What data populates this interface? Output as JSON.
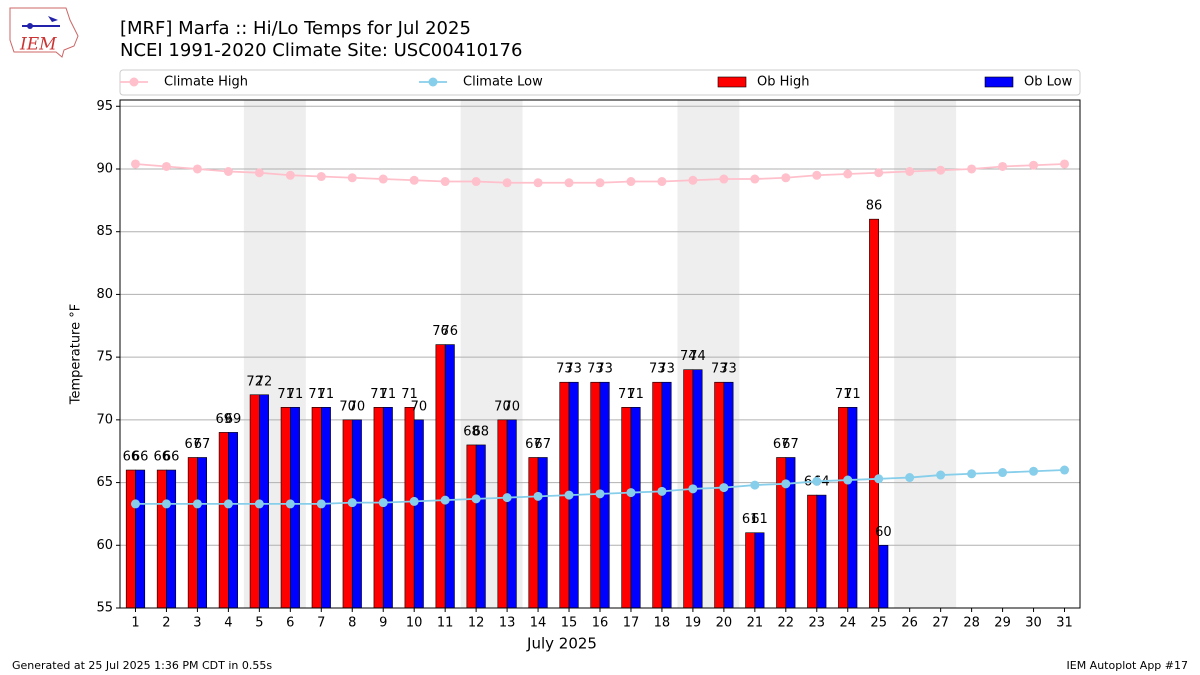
{
  "chart_data": {
    "type": "bar",
    "title": "[MRF] Marfa :: Hi/Lo Temps for Jul 2025",
    "subtitle": "NCEI 1991-2020 Climate Site: USC00410176",
    "logo_text": "IEM",
    "x_label": "July 2025",
    "y_label": "Temperature °F",
    "footer_left": "Generated at 25 Jul 2025 1:36 PM CDT in 0.55s",
    "footer_right": "IEM Autoplot App #17",
    "x": [
      1,
      2,
      3,
      4,
      5,
      6,
      7,
      8,
      9,
      10,
      11,
      12,
      13,
      14,
      15,
      16,
      17,
      18,
      19,
      20,
      21,
      22,
      23,
      24,
      25,
      26,
      27,
      28,
      29,
      30,
      31
    ],
    "xlim": [
      0.5,
      31.5
    ],
    "xticks": [
      1,
      2,
      3,
      4,
      5,
      6,
      7,
      8,
      9,
      10,
      11,
      12,
      13,
      14,
      15,
      16,
      17,
      18,
      19,
      20,
      21,
      22,
      23,
      24,
      25,
      26,
      27,
      28,
      29,
      30,
      31
    ],
    "ylim": [
      55,
      95.5
    ],
    "yticks": [
      55,
      60,
      65,
      70,
      75,
      80,
      85,
      90,
      95
    ],
    "grid": true,
    "shaded_days": [
      [
        5,
        6
      ],
      [
        12,
        13
      ],
      [
        19,
        20
      ],
      [
        26,
        27
      ]
    ],
    "series": [
      {
        "name": "Climate High",
        "type": "line",
        "color": "#ffc0cb",
        "values": [
          90.4,
          90.2,
          90.0,
          89.8,
          89.7,
          89.5,
          89.4,
          89.3,
          89.2,
          89.1,
          89.0,
          89.0,
          88.9,
          88.9,
          88.9,
          88.9,
          89.0,
          89.0,
          89.1,
          89.2,
          89.2,
          89.3,
          89.5,
          89.6,
          89.7,
          89.8,
          89.9,
          90.0,
          90.2,
          90.3,
          90.4
        ]
      },
      {
        "name": "Climate Low",
        "type": "line",
        "color": "#87ceeb",
        "values": [
          63.3,
          63.3,
          63.3,
          63.3,
          63.3,
          63.3,
          63.3,
          63.4,
          63.4,
          63.5,
          63.6,
          63.7,
          63.8,
          63.9,
          64.0,
          64.1,
          64.2,
          64.3,
          64.5,
          64.6,
          64.8,
          64.9,
          65.1,
          65.2,
          65.3,
          65.4,
          65.6,
          65.7,
          65.8,
          65.9,
          66.0
        ]
      },
      {
        "name": "Ob High",
        "type": "bar",
        "color": "#ff0000",
        "values": [
          66,
          66,
          67,
          69,
          72,
          71,
          71,
          70,
          71,
          71,
          76,
          68,
          70,
          67,
          73,
          73,
          71,
          73,
          74,
          73,
          61,
          67,
          64,
          71,
          86,
          null,
          null,
          null,
          null,
          null,
          null
        ]
      },
      {
        "name": "Ob Low",
        "type": "bar",
        "color": "#0000ff",
        "values": [
          66,
          66,
          67,
          69,
          72,
          71,
          71,
          70,
          71,
          70,
          76,
          68,
          70,
          67,
          73,
          73,
          71,
          73,
          74,
          73,
          61,
          67,
          64,
          71,
          60,
          null,
          null,
          null,
          null,
          null,
          null
        ]
      }
    ]
  }
}
